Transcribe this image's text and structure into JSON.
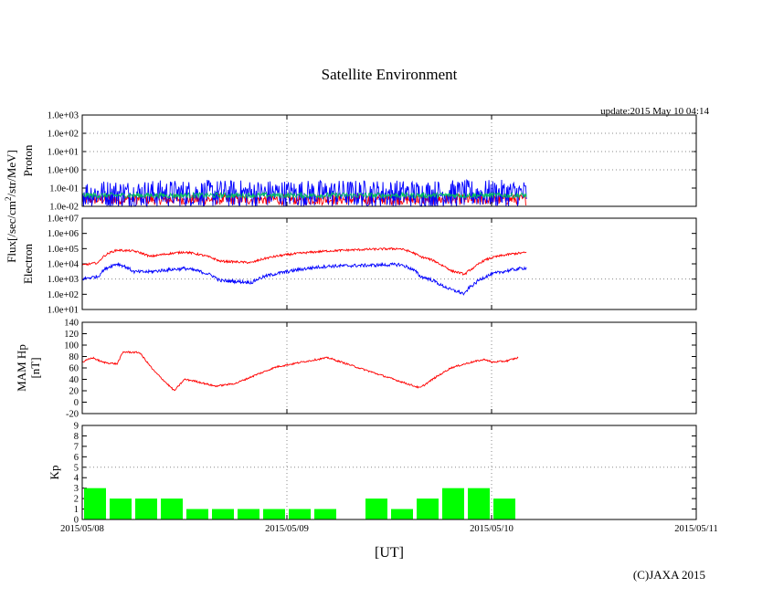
{
  "title": "Satellite Environment",
  "update": "update:2015 May 10 04:14",
  "credit": "(C)JAXA 2015",
  "colors": {
    "red": "#ff0000",
    "blue": "#0000ff",
    "green": "#00c060",
    "kp": "#00ff00",
    "grid": "#888888"
  },
  "chart_data": [
    {
      "type": "line",
      "panel": "proton",
      "ylabel": "Proton",
      "yscale": "log",
      "ylim": [
        0.01,
        1000
      ],
      "yticks": [
        "1.0e-02",
        "1.0e-01",
        "1.0e+00",
        "1.0e+01",
        "1.0e+02",
        "1.0e+03"
      ],
      "x": [
        0,
        0.5,
        1,
        1.5,
        2,
        2.17
      ],
      "series": [
        {
          "name": "red channel",
          "color": "#ff0000",
          "values": [
            0.012,
            0.012,
            0.012,
            0.012,
            0.012,
            0.012
          ]
        },
        {
          "name": "blue channel",
          "color": "#0000ff",
          "values": [
            0.05,
            0.05,
            0.05,
            0.05,
            0.05,
            0.05
          ]
        },
        {
          "name": "green channel",
          "color": "#00c060",
          "values": [
            0.04,
            0.04,
            0.04,
            0.04,
            0.04,
            0.04
          ]
        }
      ]
    },
    {
      "type": "line",
      "panel": "electron",
      "ylabel": "Electron",
      "yscale": "log",
      "ylim": [
        10,
        10000000
      ],
      "yticks": [
        "1.0e+01",
        "1.0e+02",
        "1.0e+03",
        "1.0e+04",
        "1.0e+05",
        "1.0e+06",
        "1.0e+07"
      ],
      "x": [
        0,
        0.08,
        0.17,
        0.25,
        0.33,
        0.5,
        0.67,
        0.83,
        1.0,
        1.2,
        1.4,
        1.55,
        1.65,
        1.75,
        1.8,
        1.87,
        1.92,
        2.0,
        2.1,
        2.17
      ],
      "series": [
        {
          "name": "red channel",
          "color": "#ff0000",
          "values": [
            8000,
            12000,
            80000,
            70000,
            30000,
            60000,
            15000,
            12000,
            40000,
            70000,
            90000,
            100000,
            30000,
            9000,
            3500,
            2000,
            6000,
            25000,
            45000,
            55000
          ]
        },
        {
          "name": "blue channel",
          "color": "#0000ff",
          "values": [
            1000,
            1500,
            10000,
            3000,
            3000,
            5000,
            800,
            600,
            3000,
            7000,
            8000,
            9000,
            1500,
            400,
            200,
            100,
            500,
            2000,
            4000,
            5500
          ]
        }
      ]
    },
    {
      "type": "line",
      "panel": "mam_hp",
      "ylabel": "MAM Hp [nT]",
      "ylim": [
        -20,
        140
      ],
      "yticks": [
        "-20",
        "0",
        "20",
        "40",
        "60",
        "80",
        "100",
        "120",
        "140"
      ],
      "x": [
        0,
        0.05,
        0.1,
        0.17,
        0.2,
        0.28,
        0.35,
        0.45,
        0.5,
        0.55,
        0.65,
        0.75,
        0.85,
        0.95,
        1.1,
        1.2,
        1.65,
        1.72,
        1.8,
        1.9,
        1.97,
        2.0,
        2.07,
        2.13
      ],
      "series": [
        {
          "name": "Hp",
          "color": "#ff0000",
          "values": [
            70,
            78,
            70,
            67,
            88,
            87,
            55,
            20,
            40,
            37,
            28,
            33,
            48,
            62,
            72,
            78,
            25,
            42,
            60,
            70,
            75,
            70,
            72,
            78
          ]
        }
      ]
    },
    {
      "type": "bar",
      "panel": "kp",
      "ylabel": "Kp",
      "ylim": [
        0,
        9
      ],
      "yticks": [
        "0",
        "1",
        "2",
        "3",
        "4",
        "5",
        "6",
        "7",
        "8",
        "9"
      ],
      "bar_width_days": 0.125,
      "bars": [
        {
          "start": 0.0,
          "value": 3
        },
        {
          "start": 0.125,
          "value": 2
        },
        {
          "start": 0.25,
          "value": 2
        },
        {
          "start": 0.375,
          "value": 2
        },
        {
          "start": 0.5,
          "value": 1
        },
        {
          "start": 0.625,
          "value": 1
        },
        {
          "start": 0.75,
          "value": 1
        },
        {
          "start": 0.875,
          "value": 1
        },
        {
          "start": 1.0,
          "value": 1
        },
        {
          "start": 1.125,
          "value": 1
        },
        {
          "start": 1.375,
          "value": 2
        },
        {
          "start": 1.5,
          "value": 1
        },
        {
          "start": 1.625,
          "value": 2
        },
        {
          "start": 1.75,
          "value": 3
        },
        {
          "start": 1.875,
          "value": 3
        },
        {
          "start": 2.0,
          "value": 2
        }
      ]
    }
  ],
  "flux_label": "Flux[/sec/cm",
  "flux_sup": "2",
  "flux_rest": "/str/MeV]",
  "xaxis": {
    "label": "[UT]",
    "range_days": [
      0,
      3
    ],
    "ticks": [
      "2015/05/08",
      "2015/05/09",
      "2015/05/10",
      "2015/05/11"
    ]
  }
}
